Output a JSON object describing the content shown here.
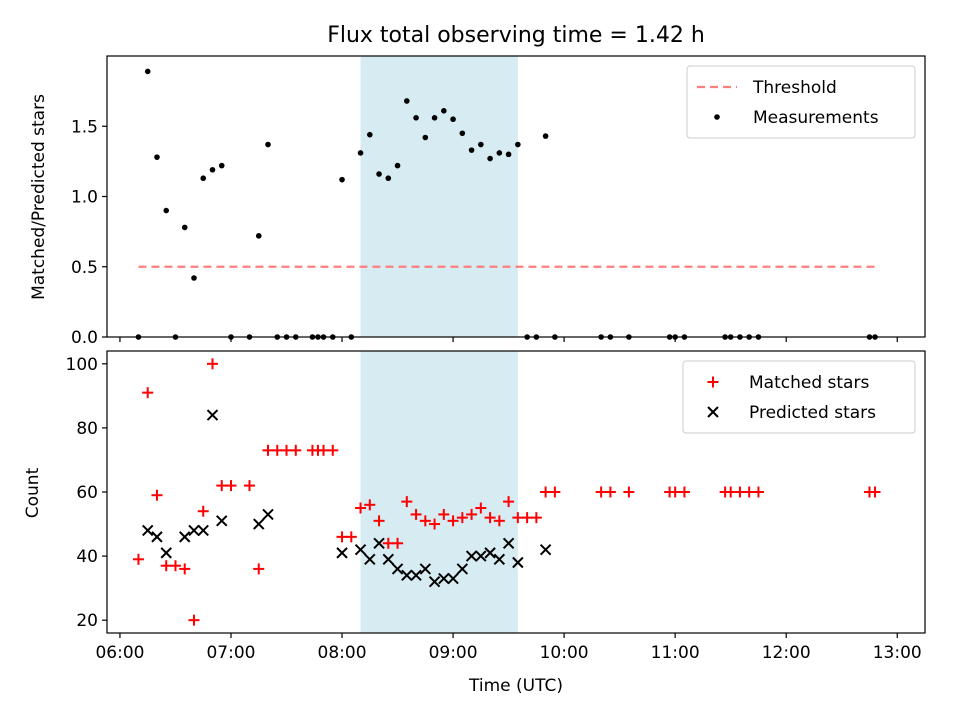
{
  "chart_data": [
    {
      "type": "scatter",
      "title": "Flux total observing time = 1.42 h",
      "xlabel": "",
      "ylabel": "Matched/Predicted stars",
      "ylim": [
        0,
        2.0
      ],
      "yticks": [
        "0.0",
        "0.5",
        "1.0",
        "1.5"
      ],
      "grid": false,
      "legend_position": "upper right",
      "threshold": {
        "name": "Threshold",
        "y": 0.5,
        "x_start": "06:10",
        "x_end": "12:48",
        "color": "#ff7f7f",
        "style": "dashed"
      },
      "shaded_region": {
        "x_start": "08:10",
        "x_end": "09:35",
        "color": "#add8e6"
      },
      "series": [
        {
          "name": "Measurements",
          "color": "#000000",
          "marker": "dot",
          "points": [
            [
              "06:10",
              0.0
            ],
            [
              "06:15",
              1.89
            ],
            [
              "06:20",
              1.28
            ],
            [
              "06:25",
              0.9
            ],
            [
              "06:30",
              0.0
            ],
            [
              "06:35",
              0.78
            ],
            [
              "06:40",
              0.42
            ],
            [
              "06:45",
              1.13
            ],
            [
              "06:50",
              1.19
            ],
            [
              "06:55",
              1.22
            ],
            [
              "07:00",
              0.0
            ],
            [
              "07:10",
              0.0
            ],
            [
              "07:15",
              0.72
            ],
            [
              "07:20",
              1.37
            ],
            [
              "07:25",
              0.0
            ],
            [
              "07:30",
              0.0
            ],
            [
              "07:35",
              0.0
            ],
            [
              "07:44",
              0.0
            ],
            [
              "07:47",
              0.0
            ],
            [
              "07:50",
              0.0
            ],
            [
              "07:55",
              0.0
            ],
            [
              "08:00",
              1.12
            ],
            [
              "08:05",
              0.0
            ],
            [
              "08:10",
              1.31
            ],
            [
              "08:15",
              1.44
            ],
            [
              "08:20",
              1.16
            ],
            [
              "08:25",
              1.13
            ],
            [
              "08:30",
              1.22
            ],
            [
              "08:35",
              1.68
            ],
            [
              "08:40",
              1.56
            ],
            [
              "08:45",
              1.42
            ],
            [
              "08:50",
              1.56
            ],
            [
              "08:55",
              1.61
            ],
            [
              "09:00",
              1.55
            ],
            [
              "09:05",
              1.45
            ],
            [
              "09:10",
              1.33
            ],
            [
              "09:15",
              1.37
            ],
            [
              "09:20",
              1.27
            ],
            [
              "09:25",
              1.31
            ],
            [
              "09:30",
              1.3
            ],
            [
              "09:35",
              1.37
            ],
            [
              "09:40",
              0.0
            ],
            [
              "09:45",
              0.0
            ],
            [
              "09:50",
              1.43
            ],
            [
              "09:55",
              0.0
            ],
            [
              "10:20",
              0.0
            ],
            [
              "10:25",
              0.0
            ],
            [
              "10:35",
              0.0
            ],
            [
              "10:57",
              0.0
            ],
            [
              "11:00",
              0.0
            ],
            [
              "11:05",
              0.0
            ],
            [
              "11:27",
              0.0
            ],
            [
              "11:30",
              0.0
            ],
            [
              "11:35",
              0.0
            ],
            [
              "11:40",
              0.0
            ],
            [
              "11:45",
              0.0
            ],
            [
              "12:45",
              0.0
            ],
            [
              "12:48",
              0.0
            ]
          ]
        }
      ]
    },
    {
      "type": "scatter",
      "title": "",
      "xlabel": "Time (UTC)",
      "ylabel": "Count",
      "ylim": [
        16,
        104
      ],
      "yticks": [
        "20",
        "40",
        "60",
        "80",
        "100"
      ],
      "xticks": [
        "06:00",
        "07:00",
        "08:00",
        "09:00",
        "10:00",
        "11:00",
        "12:00",
        "13:00"
      ],
      "xlim": [
        "05:53",
        "13:15"
      ],
      "grid": false,
      "legend_position": "upper right",
      "shaded_region": {
        "x_start": "08:10",
        "x_end": "09:35",
        "color": "#add8e6"
      },
      "series": [
        {
          "name": "Matched stars",
          "color": "#ff0000",
          "marker": "plus",
          "points": [
            [
              "06:10",
              39
            ],
            [
              "06:15",
              91
            ],
            [
              "06:20",
              59
            ],
            [
              "06:25",
              37
            ],
            [
              "06:30",
              37
            ],
            [
              "06:35",
              36
            ],
            [
              "06:40",
              20
            ],
            [
              "06:45",
              54
            ],
            [
              "06:50",
              100
            ],
            [
              "06:55",
              62
            ],
            [
              "07:00",
              62
            ],
            [
              "07:10",
              62
            ],
            [
              "07:15",
              36
            ],
            [
              "07:20",
              73
            ],
            [
              "07:25",
              73
            ],
            [
              "07:30",
              73
            ],
            [
              "07:35",
              73
            ],
            [
              "07:44",
              73
            ],
            [
              "07:47",
              73
            ],
            [
              "07:50",
              73
            ],
            [
              "07:55",
              73
            ],
            [
              "08:00",
              46
            ],
            [
              "08:05",
              46
            ],
            [
              "08:10",
              55
            ],
            [
              "08:15",
              56
            ],
            [
              "08:20",
              51
            ],
            [
              "08:25",
              44
            ],
            [
              "08:30",
              44
            ],
            [
              "08:35",
              57
            ],
            [
              "08:40",
              53
            ],
            [
              "08:45",
              51
            ],
            [
              "08:50",
              50
            ],
            [
              "08:55",
              53
            ],
            [
              "09:00",
              51
            ],
            [
              "09:05",
              52
            ],
            [
              "09:10",
              53
            ],
            [
              "09:15",
              55
            ],
            [
              "09:20",
              52
            ],
            [
              "09:25",
              51
            ],
            [
              "09:30",
              57
            ],
            [
              "09:35",
              52
            ],
            [
              "09:40",
              52
            ],
            [
              "09:45",
              52
            ],
            [
              "09:50",
              60
            ],
            [
              "09:55",
              60
            ],
            [
              "10:20",
              60
            ],
            [
              "10:25",
              60
            ],
            [
              "10:35",
              60
            ],
            [
              "10:57",
              60
            ],
            [
              "11:00",
              60
            ],
            [
              "11:05",
              60
            ],
            [
              "11:27",
              60
            ],
            [
              "11:30",
              60
            ],
            [
              "11:35",
              60
            ],
            [
              "11:40",
              60
            ],
            [
              "11:45",
              60
            ],
            [
              "12:45",
              60
            ],
            [
              "12:48",
              60
            ]
          ]
        },
        {
          "name": "Predicted stars",
          "color": "#000000",
          "marker": "x",
          "points": [
            [
              "06:15",
              48
            ],
            [
              "06:20",
              46
            ],
            [
              "06:25",
              41
            ],
            [
              "06:35",
              46
            ],
            [
              "06:40",
              48
            ],
            [
              "06:45",
              48
            ],
            [
              "06:50",
              84
            ],
            [
              "06:55",
              51
            ],
            [
              "07:15",
              50
            ],
            [
              "07:20",
              53
            ],
            [
              "08:00",
              41
            ],
            [
              "08:10",
              42
            ],
            [
              "08:15",
              39
            ],
            [
              "08:20",
              44
            ],
            [
              "08:25",
              39
            ],
            [
              "08:30",
              36
            ],
            [
              "08:35",
              34
            ],
            [
              "08:40",
              34
            ],
            [
              "08:45",
              36
            ],
            [
              "08:50",
              32
            ],
            [
              "08:55",
              33
            ],
            [
              "09:00",
              33
            ],
            [
              "09:05",
              36
            ],
            [
              "09:10",
              40
            ],
            [
              "09:15",
              40
            ],
            [
              "09:20",
              41
            ],
            [
              "09:25",
              39
            ],
            [
              "09:30",
              44
            ],
            [
              "09:35",
              38
            ],
            [
              "09:50",
              42
            ]
          ]
        }
      ]
    }
  ]
}
